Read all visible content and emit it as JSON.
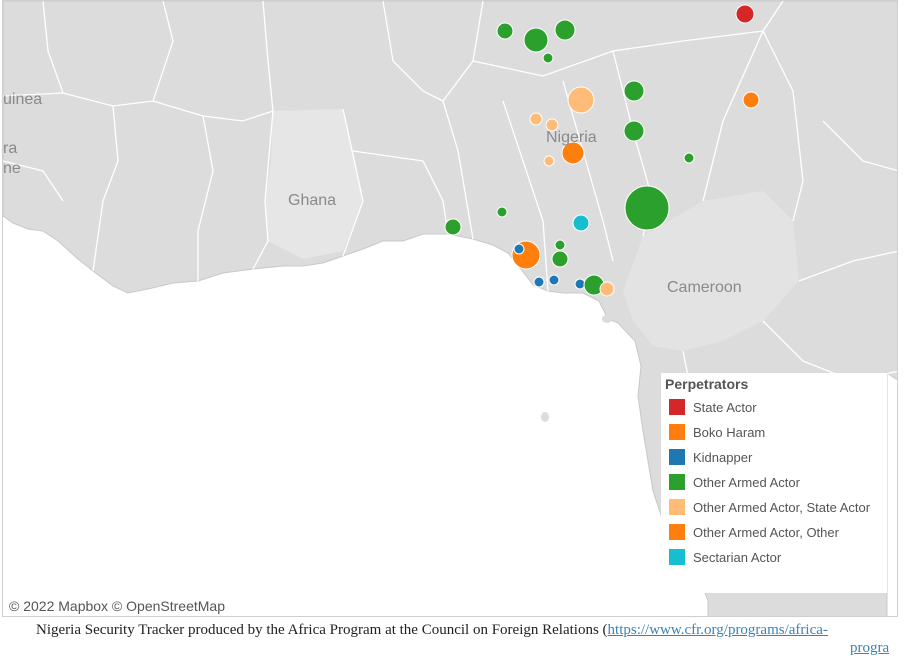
{
  "map": {
    "country_labels": {
      "guinea": "uinea",
      "edge1": "ra",
      "edge2": "ne",
      "ghana": "Ghana",
      "nigeria": "Nigeria",
      "cameroon": "Cameroon"
    },
    "attribution": "© 2022 Mapbox  © OpenStreetMap",
    "colors": {
      "land": "#dcdcdc",
      "ocean": "#ffffff",
      "borders": "#ffffff"
    }
  },
  "legend": {
    "title": "Perpetrators",
    "items": [
      {
        "label": "State Actor",
        "color": "#d62728"
      },
      {
        "label": "Boko Haram",
        "color": "#ff7f0e"
      },
      {
        "label": "Kidnapper",
        "color": "#1f77b4"
      },
      {
        "label": "Other Armed Actor",
        "color": "#2ca02c"
      },
      {
        "label": "Other Armed Actor, State Actor",
        "color": "#ffbb78"
      },
      {
        "label": "Other Armed Actor, Other",
        "color": "#ff7f0e"
      },
      {
        "label": "Sectarian Actor",
        "color": "#17becf"
      }
    ]
  },
  "caption": {
    "text": "Nigeria Security Tracker produced by the Africa Program at the Council on Foreign Relations (",
    "link": "https://www.cfr.org/programs/africa-",
    "tail": "progra"
  }
}
